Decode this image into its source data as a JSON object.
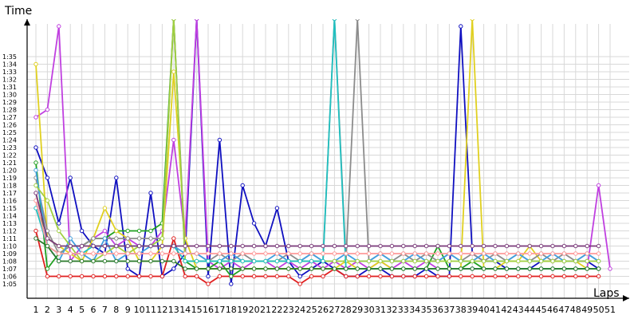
{
  "chart_data": {
    "type": "line",
    "title": "",
    "xlabel": "Laps",
    "ylabel": "Time",
    "x": [
      1,
      2,
      3,
      4,
      5,
      6,
      7,
      8,
      9,
      10,
      11,
      12,
      13,
      14,
      15,
      16,
      17,
      18,
      19,
      20,
      21,
      22,
      23,
      24,
      25,
      26,
      27,
      28,
      29,
      30,
      31,
      32,
      33,
      34,
      35,
      36,
      37,
      38,
      39,
      40,
      41,
      42,
      43,
      44,
      45,
      46,
      47,
      48,
      49,
      50,
      51
    ],
    "x_tick_labels": [
      "1",
      "2",
      "3",
      "4",
      "5",
      "6",
      "7",
      "8",
      "9",
      "10",
      "11",
      "12",
      "13",
      "14",
      "15",
      "16",
      "17",
      "18",
      "19",
      "20",
      "21",
      "22",
      "23",
      "24",
      "25",
      "26",
      "27",
      "28",
      "29",
      "30",
      "31",
      "32",
      "33",
      "34",
      "35",
      "36",
      "37",
      "38",
      "39",
      "40",
      "41",
      "42",
      "43",
      "44",
      "45",
      "46",
      "47",
      "48",
      "49",
      "50",
      "51"
    ],
    "y_tick_labels": [
      "1:05",
      "1:06",
      "1:07",
      "1:08",
      "1:09",
      "1:10",
      "1:11",
      "1:12",
      "1:13",
      "1:14",
      "1:15",
      "1:16",
      "1:17",
      "1:18",
      "1:19",
      "1:20",
      "1:21",
      "1:22",
      "1:23",
      "1:24",
      "1:25",
      "1:26",
      "1:27",
      "1:28",
      "1:29",
      "1:30",
      "1:31",
      "1:32",
      "1:33",
      "1:34",
      "1:35"
    ],
    "y_unit": "seconds",
    "ylim": [
      64,
      99
    ],
    "grid": true,
    "series": [
      {
        "color": "#1010c0",
        "values": [
          83,
          79,
          73,
          79,
          72,
          70,
          69,
          79,
          67,
          66,
          77,
          66,
          67,
          69,
          100,
          66,
          84,
          65,
          78,
          73,
          70,
          75,
          68,
          66,
          67,
          68,
          67,
          66,
          66,
          67,
          67,
          66,
          66,
          66,
          67,
          66,
          66,
          99,
          69,
          68,
          68,
          67,
          67,
          67,
          68,
          68,
          68,
          68,
          68,
          67,
          null
        ]
      },
      {
        "color": "#e02020",
        "values": [
          72,
          66,
          66,
          66,
          66,
          66,
          66,
          66,
          66,
          66,
          66,
          66,
          71,
          66,
          66,
          65,
          66,
          66,
          66,
          66,
          66,
          66,
          66,
          65,
          66,
          66,
          67,
          66,
          66,
          66,
          66,
          66,
          66,
          66,
          66,
          66,
          66,
          66,
          66,
          66,
          66,
          66,
          66,
          66,
          66,
          66,
          66,
          66,
          66,
          66,
          null
        ]
      },
      {
        "color": "#c040e0",
        "values": [
          87,
          88,
          99,
          68,
          70,
          71,
          72,
          70,
          71,
          70,
          70,
          72,
          84,
          71,
          100,
          68,
          67,
          68,
          67,
          68,
          68,
          67,
          68,
          67,
          68,
          67,
          68,
          67,
          68,
          67,
          68,
          67,
          68,
          67,
          68,
          67,
          67,
          67,
          67,
          67,
          67,
          67,
          67,
          67,
          67,
          67,
          67,
          67,
          67,
          78,
          67
        ]
      },
      {
        "color": "#20a020",
        "values": [
          81,
          67,
          69,
          70,
          70,
          71,
          71,
          72,
          72,
          72,
          72,
          73,
          100,
          68,
          67,
          67,
          68,
          66,
          67,
          67,
          67,
          67,
          67,
          67,
          67,
          67,
          67,
          67,
          67,
          67,
          67,
          67,
          67,
          67,
          67,
          70,
          67,
          67,
          68,
          67,
          67,
          67,
          67,
          67,
          67,
          67,
          67,
          67,
          67,
          67,
          null
        ]
      },
      {
        "color": "#e0d020",
        "values": [
          94,
          71,
          70,
          69,
          68,
          71,
          75,
          72,
          71,
          68,
          68,
          70,
          93,
          71,
          67,
          67,
          67,
          67,
          67,
          67,
          67,
          67,
          67,
          67,
          67,
          67,
          67,
          68,
          67,
          67,
          68,
          67,
          67,
          67,
          67,
          67,
          67,
          67,
          100,
          67,
          67,
          68,
          68,
          70,
          68,
          68,
          68,
          68,
          67,
          67,
          null
        ]
      },
      {
        "color": "#8c8c8c",
        "values": [
          79,
          72,
          69,
          70,
          70,
          71,
          71,
          71,
          71,
          71,
          71,
          71,
          100,
          69,
          69,
          68,
          69,
          68,
          69,
          68,
          68,
          68,
          69,
          68,
          69,
          68,
          100,
          68,
          100,
          68,
          69,
          68,
          69,
          68,
          69,
          68,
          69,
          68,
          69,
          68,
          69,
          68,
          69,
          68,
          69,
          68,
          69,
          68,
          69,
          68,
          null
        ]
      },
      {
        "color": "#40a0e0",
        "values": [
          80,
          70,
          68,
          71,
          69,
          68,
          71,
          68,
          69,
          69,
          70,
          70,
          70,
          69,
          69,
          68,
          68,
          69,
          68,
          68,
          68,
          69,
          68,
          68,
          69,
          68,
          68,
          69,
          68,
          68,
          69,
          68,
          68,
          69,
          68,
          68,
          69,
          68,
          68,
          69,
          68,
          68,
          69,
          68,
          68,
          69,
          68,
          68,
          69,
          68,
          null
        ]
      },
      {
        "color": "#a0d040",
        "values": [
          78,
          76,
          72,
          70,
          68,
          68,
          69,
          70,
          69,
          70,
          70,
          71,
          100,
          68,
          68,
          68,
          68,
          68,
          68,
          68,
          68,
          68,
          68,
          68,
          68,
          68,
          68,
          68,
          68,
          68,
          68,
          68,
          68,
          68,
          68,
          68,
          68,
          68,
          68,
          68,
          68,
          68,
          68,
          68,
          68,
          68,
          68,
          68,
          68,
          68,
          null
        ]
      },
      {
        "color": "#20c0c0",
        "values": [
          75,
          70,
          69,
          69,
          69,
          70,
          70,
          70,
          70,
          70,
          70,
          70,
          70,
          68,
          68,
          68,
          68,
          68,
          68,
          68,
          68,
          68,
          68,
          68,
          68,
          68,
          100,
          67,
          67,
          67,
          67,
          67,
          67,
          67,
          67,
          67,
          67,
          67,
          67,
          67,
          67,
          67,
          67,
          67,
          67,
          67,
          67,
          67,
          67,
          67,
          null
        ]
      },
      {
        "color": "#ff9a9a",
        "values": [
          76,
          70,
          69,
          69,
          69,
          69,
          69,
          69,
          69,
          69,
          69,
          69,
          69,
          69,
          69,
          69,
          69,
          69,
          69,
          69,
          69,
          69,
          69,
          69,
          69,
          69,
          69,
          69,
          69,
          69,
          69,
          69,
          69,
          69,
          69,
          69,
          69,
          69,
          69,
          69,
          69,
          69,
          69,
          69,
          69,
          69,
          69,
          69,
          69,
          69,
          null
        ]
      },
      {
        "color": "#2a7a2a",
        "values": [
          71,
          70,
          68,
          68,
          68,
          68,
          68,
          68,
          68,
          68,
          68,
          68,
          68,
          67,
          67,
          67,
          67,
          67,
          67,
          67,
          67,
          67,
          67,
          67,
          67,
          67,
          67,
          67,
          67,
          67,
          67,
          67,
          67,
          67,
          67,
          67,
          67,
          67,
          67,
          67,
          67,
          67,
          67,
          67,
          67,
          67,
          67,
          67,
          67,
          67,
          null
        ]
      },
      {
        "color": "#7a3a7a",
        "values": [
          77,
          71,
          70,
          70,
          70,
          70,
          70,
          70,
          70,
          70,
          70,
          70,
          70,
          70,
          70,
          70,
          70,
          70,
          70,
          70,
          70,
          70,
          70,
          70,
          70,
          70,
          70,
          70,
          70,
          70,
          70,
          70,
          70,
          70,
          70,
          70,
          70,
          70,
          70,
          70,
          70,
          70,
          70,
          70,
          70,
          70,
          70,
          70,
          70,
          70,
          null
        ]
      }
    ]
  }
}
